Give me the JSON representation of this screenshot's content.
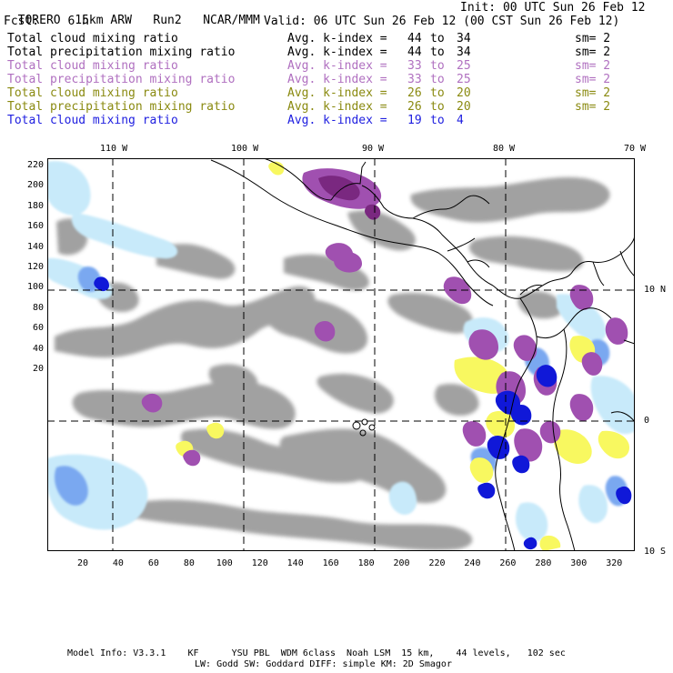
{
  "header": {
    "model": "TORERO",
    "resolution": "15km ARW",
    "run": "Run2",
    "org": "NCAR/MMM",
    "init": "Init: 00 UTC Sun 26 Feb 12",
    "fcst_label": "Fcst:",
    "fcst_value": "6 h",
    "valid": "Valid: 06 UTC Sun 26 Feb 12 (00 CST Sun 26 Feb 12)"
  },
  "legend": [
    {
      "field": "Total cloud mixing ratio",
      "index": "Avg. k-index =",
      "from": "44",
      "to_word": "to",
      "to": "34",
      "sm": "sm= 2",
      "color": "#000000"
    },
    {
      "field": "Total precipitation mixing ratio",
      "index": "Avg. k-index =",
      "from": "44",
      "to_word": "to",
      "to": "34",
      "sm": "sm= 2",
      "color": "#000000"
    },
    {
      "field": "Total cloud mixing ratio",
      "index": "Avg. k-index =",
      "from": "33",
      "to_word": "to",
      "to": "25",
      "sm": "sm= 2",
      "color": "#b070c0"
    },
    {
      "field": "Total precipitation mixing ratio",
      "index": "Avg. k-index =",
      "from": "33",
      "to_word": "to",
      "to": "25",
      "sm": "sm= 2",
      "color": "#b070c0"
    },
    {
      "field": "Total cloud mixing ratio",
      "index": "Avg. k-index =",
      "from": "26",
      "to_word": "to",
      "to": "20",
      "sm": "sm= 2",
      "color": "#8a8a10"
    },
    {
      "field": "Total precipitation mixing ratio",
      "index": "Avg. k-index =",
      "from": "26",
      "to_word": "to",
      "to": "20",
      "sm": "sm= 2",
      "color": "#8a8a10"
    },
    {
      "field": "Total cloud mixing ratio",
      "index": "Avg. k-index =",
      "from": "19",
      "to_word": "to",
      "to": "4",
      "sm": "",
      "color": "#2020e0"
    }
  ],
  "axes": {
    "longitude_labels": [
      "110 W",
      "100 W",
      "90 W",
      "80 W",
      "70 W"
    ],
    "latitude_labels": [
      "10 N",
      "0",
      "10 S"
    ],
    "y_ticks": [
      "220",
      "200",
      "180",
      "160",
      "140",
      "120",
      "100",
      "80",
      "60",
      "40",
      "20"
    ],
    "x_ticks": [
      "20",
      "40",
      "60",
      "80",
      "100",
      "120",
      "140",
      "160",
      "180",
      "200",
      "220",
      "240",
      "260",
      "280",
      "300",
      "320"
    ]
  },
  "colors": {
    "gray_cloud": "#9c9c9c",
    "light_blue": "#c8eafa",
    "mid_blue": "#7aa8f0",
    "dark_blue": "#1018d8",
    "purple": "#a050b0",
    "dark_purple": "#7a2880",
    "yellow": "#f8f860"
  },
  "footer": {
    "line1": "Model Info: V3.3.1    KF      YSU PBL  WDM 6class  Noah LSM  15 km,    44 levels,   102 sec",
    "line2": "LW: Godd SW: Goddard DIFF: simple KM: 2D Smagor"
  }
}
